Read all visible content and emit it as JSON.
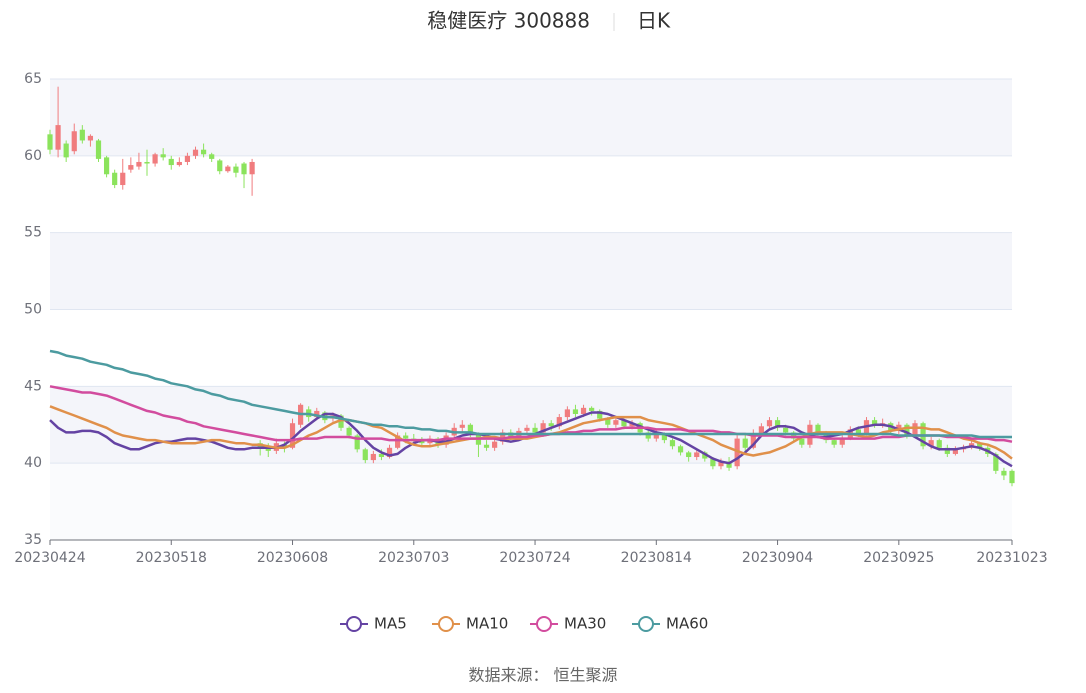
{
  "chart_data": {
    "type": "candlestick",
    "title": "稳健医疗 300888",
    "subtitle": "日K",
    "source": "数据来源： 恒生聚源",
    "up_color": "#f07c7e",
    "down_color": "#8be35c",
    "grid": true,
    "legend": "bottom",
    "ylim": [
      35,
      65
    ],
    "yticks": [
      35,
      40,
      45,
      50,
      55,
      60,
      65
    ],
    "categories": [
      "20230424",
      null,
      null,
      null,
      null,
      null,
      null,
      null,
      null,
      null,
      null,
      null,
      null,
      null,
      null,
      "20230518",
      null,
      null,
      null,
      null,
      null,
      null,
      null,
      null,
      null,
      null,
      null,
      null,
      null,
      null,
      "20230608",
      null,
      null,
      null,
      null,
      null,
      null,
      null,
      null,
      null,
      null,
      null,
      null,
      null,
      null,
      "20230703",
      null,
      null,
      null,
      null,
      null,
      null,
      null,
      null,
      null,
      null,
      null,
      null,
      null,
      null,
      "20230724",
      null,
      null,
      null,
      null,
      null,
      null,
      null,
      null,
      null,
      null,
      null,
      null,
      null,
      null,
      "20230814",
      null,
      null,
      null,
      null,
      null,
      null,
      null,
      null,
      null,
      null,
      null,
      null,
      null,
      null,
      "20230904",
      null,
      null,
      null,
      null,
      null,
      null,
      null,
      null,
      null,
      null,
      null,
      null,
      null,
      null,
      "20230925",
      null,
      null,
      null,
      null,
      null,
      null,
      null,
      null,
      null,
      null,
      null,
      null,
      null,
      "20231023"
    ],
    "values": [
      [
        61.4,
        60.4,
        60.1,
        61.7
      ],
      [
        60.4,
        62.0,
        59.9,
        64.5
      ],
      [
        60.8,
        59.9,
        59.6,
        61.0
      ],
      [
        60.3,
        61.6,
        60.1,
        62.1
      ],
      [
        61.7,
        61.0,
        60.8,
        62.0
      ],
      [
        61.0,
        61.3,
        60.6,
        61.4
      ],
      [
        61.0,
        59.8,
        59.6,
        61.1
      ],
      [
        59.9,
        58.8,
        58.6,
        60.0
      ],
      [
        58.9,
        58.1,
        57.9,
        59.1
      ],
      [
        58.1,
        58.9,
        57.8,
        59.8
      ],
      [
        59.1,
        59.4,
        58.9,
        59.9
      ],
      [
        59.3,
        59.6,
        59.1,
        60.2
      ],
      [
        59.6,
        59.5,
        58.7,
        60.4
      ],
      [
        59.5,
        60.1,
        59.3,
        60.2
      ],
      [
        60.1,
        59.9,
        59.7,
        60.5
      ],
      [
        59.8,
        59.4,
        59.1,
        60.0
      ],
      [
        59.4,
        59.6,
        59.3,
        59.9
      ],
      [
        59.6,
        60.0,
        59.4,
        60.2
      ],
      [
        60.0,
        60.4,
        59.8,
        60.6
      ],
      [
        60.4,
        60.1,
        59.9,
        60.8
      ],
      [
        60.1,
        59.8,
        59.6,
        60.2
      ],
      [
        59.7,
        59.0,
        58.8,
        59.8
      ],
      [
        59.0,
        59.3,
        58.9,
        59.4
      ],
      [
        59.3,
        58.9,
        58.6,
        59.5
      ],
      [
        59.5,
        58.8,
        57.9,
        59.6
      ],
      [
        58.8,
        59.6,
        57.4,
        59.8
      ],
      [
        41.3,
        41.0,
        40.5,
        41.5
      ],
      [
        41.0,
        40.8,
        40.4,
        41.3
      ],
      [
        40.8,
        41.3,
        40.6,
        41.6
      ],
      [
        41.2,
        41.0,
        40.7,
        41.4
      ],
      [
        41.0,
        42.6,
        40.9,
        42.9
      ],
      [
        42.5,
        43.8,
        42.3,
        43.9
      ],
      [
        43.5,
        43.0,
        42.7,
        43.7
      ],
      [
        43.0,
        43.4,
        42.8,
        43.6
      ],
      [
        43.3,
        42.8,
        42.6,
        43.4
      ],
      [
        42.9,
        43.1,
        42.7,
        43.3
      ],
      [
        43.1,
        42.3,
        42.1,
        43.2
      ],
      [
        42.3,
        41.8,
        41.6,
        42.4
      ],
      [
        41.8,
        40.9,
        40.7,
        41.9
      ],
      [
        40.9,
        40.2,
        40.0,
        41.0
      ],
      [
        40.2,
        40.6,
        40.0,
        40.8
      ],
      [
        40.6,
        40.4,
        40.2,
        40.9
      ],
      [
        40.4,
        41.0,
        40.3,
        41.2
      ],
      [
        41.0,
        41.8,
        40.9,
        42.0
      ],
      [
        41.8,
        41.6,
        41.3,
        42.0
      ],
      [
        41.6,
        41.5,
        41.2,
        41.9
      ],
      [
        41.5,
        41.3,
        41.1,
        41.7
      ],
      [
        41.3,
        41.6,
        41.1,
        41.8
      ],
      [
        41.6,
        41.2,
        41.0,
        41.7
      ],
      [
        41.2,
        41.8,
        41.0,
        42.0
      ],
      [
        41.8,
        42.3,
        41.6,
        42.6
      ],
      [
        42.3,
        42.5,
        42.0,
        42.8
      ],
      [
        42.5,
        41.9,
        41.7,
        42.6
      ],
      [
        41.9,
        41.2,
        40.4,
        42.0
      ],
      [
        41.2,
        41.0,
        40.8,
        41.5
      ],
      [
        41.0,
        41.4,
        40.8,
        41.6
      ],
      [
        41.4,
        42.0,
        41.2,
        42.2
      ],
      [
        42.0,
        41.7,
        41.5,
        42.2
      ],
      [
        41.7,
        42.1,
        41.5,
        42.3
      ],
      [
        42.1,
        42.3,
        41.9,
        42.5
      ],
      [
        42.3,
        42.0,
        41.8,
        42.6
      ],
      [
        42.0,
        42.6,
        41.9,
        42.8
      ],
      [
        42.6,
        42.4,
        42.1,
        42.8
      ],
      [
        42.4,
        43.0,
        42.2,
        43.2
      ],
      [
        43.0,
        43.5,
        42.8,
        43.7
      ],
      [
        43.5,
        43.2,
        43.0,
        43.8
      ],
      [
        43.2,
        43.6,
        43.0,
        43.8
      ],
      [
        43.6,
        43.4,
        43.1,
        43.7
      ],
      [
        43.4,
        42.9,
        42.7,
        43.5
      ],
      [
        42.9,
        42.5,
        42.3,
        43.0
      ],
      [
        42.5,
        42.8,
        42.3,
        43.0
      ],
      [
        42.8,
        42.4,
        42.2,
        42.9
      ],
      [
        42.4,
        42.6,
        42.2,
        42.8
      ],
      [
        42.6,
        42.0,
        41.8,
        42.7
      ],
      [
        42.0,
        41.6,
        41.4,
        42.1
      ],
      [
        41.6,
        41.9,
        41.4,
        42.2
      ],
      [
        41.9,
        41.5,
        41.3,
        42.0
      ],
      [
        41.5,
        41.1,
        40.9,
        41.6
      ],
      [
        41.1,
        40.7,
        40.5,
        41.2
      ],
      [
        40.7,
        40.4,
        40.1,
        40.8
      ],
      [
        40.4,
        40.7,
        40.2,
        40.9
      ],
      [
        40.7,
        40.3,
        40.1,
        40.8
      ],
      [
        40.3,
        39.8,
        39.6,
        40.4
      ],
      [
        39.8,
        40.1,
        39.6,
        40.3
      ],
      [
        40.1,
        39.7,
        39.5,
        40.4
      ],
      [
        39.8,
        41.6,
        39.6,
        41.8
      ],
      [
        41.6,
        41.0,
        40.8,
        41.9
      ],
      [
        41.0,
        41.9,
        40.9,
        42.2
      ],
      [
        41.9,
        42.4,
        41.7,
        42.6
      ],
      [
        42.4,
        42.8,
        42.2,
        43.0
      ],
      [
        42.8,
        42.3,
        42.1,
        43.0
      ],
      [
        42.3,
        42.0,
        41.8,
        42.5
      ],
      [
        42.0,
        41.6,
        41.4,
        42.1
      ],
      [
        41.6,
        41.2,
        41.0,
        41.7
      ],
      [
        41.2,
        42.5,
        41.0,
        42.8
      ],
      [
        42.5,
        42.0,
        41.8,
        42.6
      ],
      [
        42.0,
        41.5,
        41.3,
        42.1
      ],
      [
        41.5,
        41.2,
        41.0,
        41.6
      ],
      [
        41.2,
        41.6,
        41.0,
        41.8
      ],
      [
        41.6,
        42.2,
        41.5,
        42.4
      ],
      [
        42.2,
        41.9,
        41.7,
        42.4
      ],
      [
        41.9,
        42.8,
        41.8,
        43.0
      ],
      [
        42.8,
        42.5,
        42.3,
        43.0
      ],
      [
        42.5,
        42.6,
        42.3,
        42.9
      ],
      [
        42.6,
        42.1,
        41.9,
        42.7
      ],
      [
        42.1,
        42.5,
        41.9,
        42.7
      ],
      [
        42.5,
        41.8,
        41.6,
        42.6
      ],
      [
        41.8,
        42.6,
        41.7,
        42.8
      ],
      [
        42.6,
        41.1,
        40.9,
        42.7
      ],
      [
        41.1,
        41.5,
        40.9,
        41.7
      ],
      [
        41.5,
        41.0,
        40.8,
        41.6
      ],
      [
        41.0,
        40.6,
        40.4,
        41.2
      ],
      [
        40.6,
        40.9,
        40.5,
        41.1
      ],
      [
        40.9,
        41.0,
        40.7,
        41.2
      ],
      [
        41.0,
        41.3,
        40.9,
        41.5
      ],
      [
        41.3,
        41.0,
        40.8,
        41.4
      ],
      [
        41.0,
        40.6,
        40.4,
        41.2
      ],
      [
        40.6,
        39.5,
        39.3,
        40.7
      ],
      [
        39.5,
        39.2,
        38.9,
        39.7
      ],
      [
        39.5,
        38.7,
        38.5,
        39.6
      ]
    ],
    "series": [
      {
        "name": "MA5",
        "color": "#6443a3",
        "values": [
          42.8,
          42.3,
          42.0,
          42.0,
          42.1,
          42.1,
          42.0,
          41.7,
          41.3,
          41.1,
          40.9,
          40.9,
          41.1,
          41.3,
          41.4,
          41.4,
          41.5,
          41.6,
          41.6,
          41.5,
          41.4,
          41.2,
          41.0,
          40.9,
          40.9,
          41.0,
          41.0,
          41.0,
          41.0,
          41.2,
          41.6,
          42.1,
          42.5,
          42.9,
          43.2,
          43.2,
          43.0,
          42.6,
          42.1,
          41.5,
          41.0,
          40.7,
          40.5,
          40.6,
          41.0,
          41.3,
          41.5,
          41.5,
          41.4,
          41.4,
          41.6,
          41.8,
          41.9,
          41.9,
          41.8,
          41.6,
          41.5,
          41.4,
          41.5,
          41.7,
          41.9,
          42.1,
          42.3,
          42.5,
          42.7,
          42.9,
          43.1,
          43.3,
          43.3,
          43.2,
          43.0,
          42.8,
          42.6,
          42.4,
          42.2,
          42.0,
          41.9,
          41.7,
          41.5,
          41.2,
          40.9,
          40.6,
          40.3,
          40.1,
          40.0,
          40.3,
          40.7,
          41.2,
          41.8,
          42.2,
          42.4,
          42.4,
          42.3,
          42.0,
          41.8,
          41.7,
          41.7,
          41.8,
          41.9,
          42.1,
          42.3,
          42.4,
          42.5,
          42.5,
          42.4,
          42.2,
          42.0,
          41.7,
          41.4,
          41.1,
          40.9,
          40.9,
          40.9,
          41.0,
          41.1,
          41.0,
          40.8,
          40.5,
          40.1,
          39.8
        ]
      },
      {
        "name": "MA10",
        "color": "#e0904a",
        "values": [
          43.7,
          43.5,
          43.3,
          43.1,
          42.9,
          42.7,
          42.5,
          42.3,
          42.0,
          41.8,
          41.7,
          41.6,
          41.5,
          41.5,
          41.4,
          41.3,
          41.3,
          41.3,
          41.3,
          41.4,
          41.5,
          41.5,
          41.4,
          41.3,
          41.3,
          41.2,
          41.2,
          41.1,
          41.0,
          41.0,
          41.2,
          41.5,
          41.8,
          42.0,
          42.3,
          42.6,
          42.8,
          42.8,
          42.7,
          42.6,
          42.4,
          42.3,
          42.0,
          41.7,
          41.4,
          41.2,
          41.1,
          41.1,
          41.2,
          41.3,
          41.4,
          41.5,
          41.6,
          41.6,
          41.7,
          41.7,
          41.6,
          41.6,
          41.6,
          41.6,
          41.7,
          41.8,
          41.9,
          42.0,
          42.2,
          42.4,
          42.6,
          42.7,
          42.8,
          42.9,
          43.0,
          43.0,
          43.0,
          43.0,
          42.8,
          42.7,
          42.6,
          42.5,
          42.3,
          42.1,
          41.9,
          41.7,
          41.5,
          41.2,
          41.0,
          40.8,
          40.6,
          40.5,
          40.6,
          40.7,
          40.9,
          41.1,
          41.4,
          41.7,
          41.9,
          42.0,
          42.0,
          42.0,
          42.0,
          41.9,
          41.8,
          41.7,
          41.8,
          42.0,
          42.1,
          42.2,
          42.3,
          42.3,
          42.3,
          42.2,
          42.2,
          42.0,
          41.8,
          41.6,
          41.5,
          41.3,
          41.2,
          41.0,
          40.7,
          40.3
        ]
      },
      {
        "name": "MA30",
        "color": "#d24c9e",
        "values": [
          45.0,
          44.9,
          44.8,
          44.7,
          44.6,
          44.6,
          44.5,
          44.4,
          44.2,
          44.0,
          43.8,
          43.6,
          43.4,
          43.3,
          43.1,
          43.0,
          42.9,
          42.7,
          42.6,
          42.4,
          42.3,
          42.2,
          42.1,
          42.0,
          41.9,
          41.8,
          41.7,
          41.6,
          41.5,
          41.5,
          41.5,
          41.6,
          41.6,
          41.6,
          41.7,
          41.7,
          41.7,
          41.7,
          41.6,
          41.6,
          41.6,
          41.6,
          41.5,
          41.5,
          41.5,
          41.5,
          41.5,
          41.5,
          41.5,
          41.6,
          41.6,
          41.6,
          41.6,
          41.6,
          41.6,
          41.6,
          41.6,
          41.7,
          41.7,
          41.7,
          41.8,
          41.8,
          41.9,
          41.9,
          42.0,
          42.0,
          42.1,
          42.1,
          42.2,
          42.2,
          42.2,
          42.3,
          42.3,
          42.3,
          42.3,
          42.2,
          42.2,
          42.2,
          42.2,
          42.1,
          42.1,
          42.1,
          42.1,
          42.0,
          42.0,
          41.9,
          41.9,
          41.8,
          41.8,
          41.8,
          41.8,
          41.7,
          41.7,
          41.7,
          41.7,
          41.7,
          41.6,
          41.6,
          41.6,
          41.6,
          41.6,
          41.6,
          41.6,
          41.7,
          41.7,
          41.7,
          41.8,
          41.8,
          41.8,
          41.8,
          41.8,
          41.7,
          41.7,
          41.7,
          41.6,
          41.6,
          41.6,
          41.5,
          41.5,
          41.4
        ]
      },
      {
        "name": "MA60",
        "color": "#4c9ba0",
        "values": [
          47.3,
          47.2,
          47.0,
          46.9,
          46.8,
          46.6,
          46.5,
          46.4,
          46.2,
          46.1,
          45.9,
          45.8,
          45.7,
          45.5,
          45.4,
          45.2,
          45.1,
          45.0,
          44.8,
          44.7,
          44.5,
          44.4,
          44.2,
          44.1,
          44.0,
          43.8,
          43.7,
          43.6,
          43.5,
          43.4,
          43.3,
          43.2,
          43.2,
          43.1,
          43.0,
          43.0,
          42.9,
          42.8,
          42.7,
          42.6,
          42.5,
          42.5,
          42.4,
          42.4,
          42.3,
          42.3,
          42.2,
          42.2,
          42.1,
          42.1,
          42.0,
          42.0,
          42.0,
          41.9,
          41.9,
          41.9,
          41.9,
          41.9,
          41.9,
          41.9,
          41.9,
          41.9,
          41.9,
          41.9,
          41.9,
          41.9,
          41.9,
          41.9,
          41.9,
          41.9,
          41.9,
          41.9,
          41.9,
          41.9,
          41.9,
          41.9,
          41.9,
          41.9,
          41.9,
          41.9,
          41.9,
          41.9,
          41.9,
          41.9,
          41.9,
          41.9,
          41.9,
          41.9,
          41.9,
          41.9,
          41.9,
          41.9,
          41.9,
          41.9,
          41.9,
          41.9,
          41.9,
          41.9,
          41.9,
          41.9,
          41.9,
          41.9,
          41.9,
          41.9,
          41.9,
          41.8,
          41.8,
          41.8,
          41.8,
          41.8,
          41.8,
          41.8,
          41.8,
          41.8,
          41.8,
          41.7,
          41.7,
          41.7,
          41.7,
          41.7
        ]
      }
    ]
  }
}
